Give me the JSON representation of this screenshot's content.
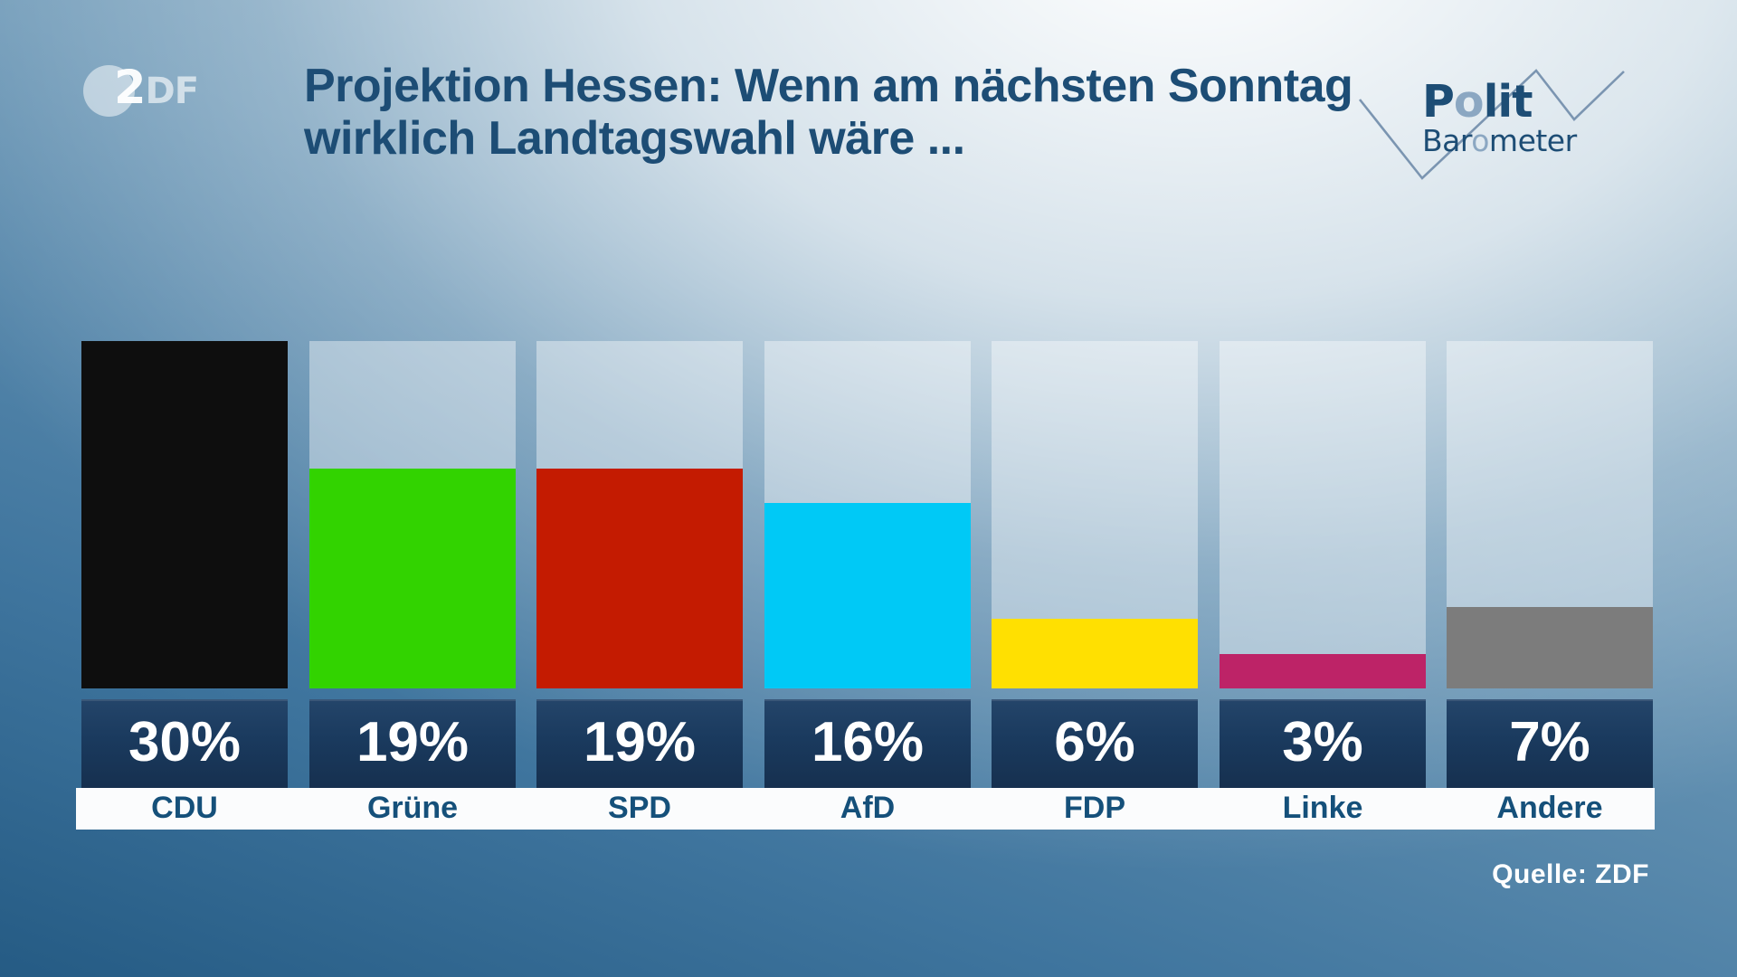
{
  "logo": {
    "zdf_2": "2",
    "zdf_df": "DF"
  },
  "title": {
    "line1": "Projektion Hessen: Wenn am nächsten Sonntag",
    "line2": "wirklich Landtagswahl wäre ..."
  },
  "brand": {
    "top_pre": "P",
    "top_o": "o",
    "top_post": "lit",
    "bottom_pre": "Bar",
    "bottom_o": "o",
    "bottom_post": "meter"
  },
  "source": {
    "label": "Quelle: ZDF"
  },
  "chart_data": {
    "type": "bar",
    "title": "Projektion Hessen: Wenn am nächsten Sonntag wirklich Landtagswahl wäre ...",
    "categories": [
      "CDU",
      "Grüne",
      "SPD",
      "AfD",
      "FDP",
      "Linke",
      "Andere"
    ],
    "values": [
      30,
      19,
      19,
      16,
      6,
      3,
      7
    ],
    "value_labels": [
      "30%",
      "19%",
      "19%",
      "16%",
      "6%",
      "3%",
      "7%"
    ],
    "bar_colors": [
      "#0e0e0e",
      "#32d300",
      "#c41b01",
      "#00c9f6",
      "#ffe001",
      "#bd2367",
      "#7c7c7c"
    ],
    "unit": "%",
    "ylim": [
      0,
      30
    ],
    "xlabel": "",
    "ylabel": "",
    "grid": false,
    "legend": "none",
    "source": "Quelle: ZDF"
  },
  "colors": {
    "title_text": "#1d4d75",
    "value_band": "#1a3a5e",
    "value_text": "#ffffff",
    "label_text": "#15507a",
    "label_band": "#fbfcfd",
    "track": "rgba(255,255,255,0.40)",
    "zigzag": "#7b95b1",
    "brand_dark": "#1d4d75",
    "brand_light": "#8ba7c2"
  }
}
